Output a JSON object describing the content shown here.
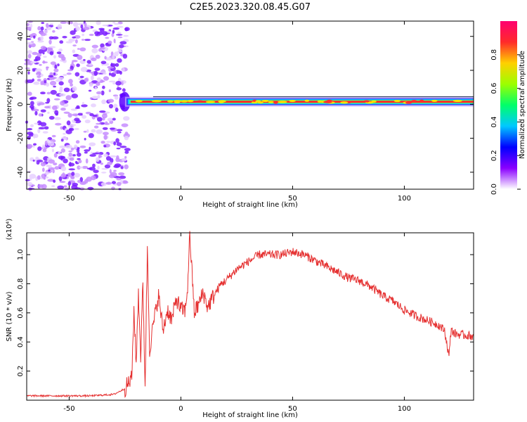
{
  "title": "C2E5.2023.320.08.45.G07",
  "chart_data": [
    {
      "type": "heatmap",
      "xlabel": "Height of straight line (km)",
      "ylabel": "Frequency (Hz)",
      "xlim": [
        -69,
        131
      ],
      "ylim": [
        -50,
        49
      ],
      "x_ticks": [
        -50,
        0,
        50,
        100
      ],
      "y_ticks": [
        -40,
        -20,
        0,
        20,
        40
      ],
      "colorbar": {
        "label": "Normalized spectral amplitude",
        "range": [
          0,
          1
        ],
        "ticks": [
          "0.0",
          "0.2",
          "0.4",
          "0.6",
          "0.8"
        ],
        "colors": [
          "#ffffff",
          "#8a00ff",
          "#0000ff",
          "#00c8ff",
          "#00ff6a",
          "#9cff00",
          "#ffd000",
          "#ff2a2a",
          "#ff0070"
        ]
      },
      "features": {
        "noise_region_x": [
          -69,
          -27
        ],
        "turbulent_start_x": -27,
        "stable_line_frequency": 1.5,
        "stable_line_x": [
          -25,
          131
        ]
      }
    },
    {
      "type": "line",
      "xlabel": "Height of straight line (km)",
      "ylabel": "SNR (10 * v/v)",
      "y_multiplier": "(x10⁴)",
      "xlim": [
        -69,
        131
      ],
      "ylim": [
        0,
        1.15
      ],
      "x_ticks": [
        -50,
        0,
        50,
        100
      ],
      "y_ticks": [
        "0.2",
        "0.4",
        "0.6",
        "0.8",
        "1.0"
      ],
      "line_color": "#e53030",
      "series": [
        {
          "x": [
            -69,
            -60,
            -50,
            -40,
            -30,
            -25,
            -22,
            -21,
            -20,
            -19,
            -18,
            -17,
            -16,
            -15,
            -14,
            -12,
            -10,
            -8,
            -6,
            -4,
            -2,
            0,
            2,
            3,
            4,
            6,
            8,
            10,
            12,
            14,
            16,
            18,
            20,
            25,
            30,
            35,
            40,
            45,
            50,
            55,
            60,
            65,
            70,
            75,
            80,
            85,
            90,
            95,
            100,
            105,
            110,
            115,
            118,
            120,
            121,
            122,
            125,
            131
          ],
          "y": [
            0.03,
            0.03,
            0.03,
            0.03,
            0.04,
            0.08,
            0.15,
            0.62,
            0.25,
            0.75,
            0.3,
            0.8,
            0.1,
            1.05,
            0.35,
            0.55,
            0.72,
            0.48,
            0.62,
            0.55,
            0.7,
            0.62,
            0.62,
            0.78,
            1.14,
            0.6,
            0.66,
            0.74,
            0.64,
            0.7,
            0.75,
            0.8,
            0.82,
            0.9,
            0.95,
            1.0,
            1.0,
            1.0,
            1.02,
            1.0,
            0.96,
            0.92,
            0.88,
            0.84,
            0.82,
            0.78,
            0.72,
            0.68,
            0.62,
            0.58,
            0.55,
            0.52,
            0.48,
            0.3,
            0.5,
            0.46,
            0.45,
            0.44
          ]
        }
      ]
    }
  ]
}
